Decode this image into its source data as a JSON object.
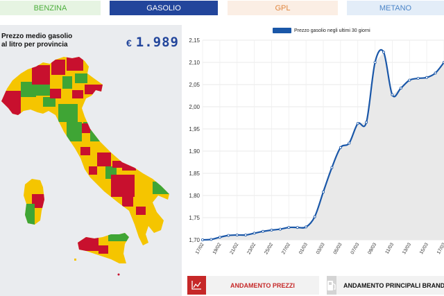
{
  "tabs": [
    {
      "label": "BENZINA"
    },
    {
      "label": "GASOLIO",
      "active": true
    },
    {
      "label": "GPL"
    },
    {
      "label": "METANO"
    }
  ],
  "map_panel": {
    "title_line1": "Prezzo medio gasolio",
    "title_line2": "al litro per provincia",
    "currency": "€",
    "price": "1.989"
  },
  "colors": {
    "accent": "#22459b",
    "map_green": "#3fa535",
    "map_yellow": "#f5c500",
    "map_red": "#c8102e",
    "line": "#1a57a8",
    "button_red": "#c62828"
  },
  "chart_data": {
    "type": "area",
    "legend": "Prezzo gasolio negli ultimi 30 giorni",
    "x_ticks": [
      "17/02",
      "19/02",
      "21/02",
      "23/02",
      "25/02",
      "27/02",
      "01/03",
      "03/03",
      "05/03",
      "07/03",
      "09/03",
      "11/03",
      "13/03",
      "15/03",
      "17/03"
    ],
    "y_ticks": [
      "1,70",
      "1,75",
      "1,80",
      "1,85",
      "1,90",
      "1,95",
      "2,00",
      "2,05",
      "2,10",
      "2,15"
    ],
    "ylim": [
      1.7,
      2.15
    ],
    "grid": true,
    "x": [
      "17/02",
      "18/02",
      "19/02",
      "20/02",
      "21/02",
      "22/02",
      "23/02",
      "24/02",
      "25/02",
      "26/02",
      "27/02",
      "28/02",
      "01/03",
      "02/03",
      "03/03",
      "04/03",
      "05/03",
      "06/03",
      "07/03",
      "08/03",
      "09/03",
      "10/03",
      "11/03",
      "12/03",
      "13/03",
      "14/03",
      "15/03",
      "16/03",
      "17/03"
    ],
    "values": [
      1.7,
      1.701,
      1.706,
      1.71,
      1.711,
      1.711,
      1.715,
      1.719,
      1.722,
      1.724,
      1.728,
      1.728,
      1.729,
      1.752,
      1.808,
      1.863,
      1.908,
      1.918,
      1.962,
      1.965,
      2.1,
      2.123,
      2.027,
      2.042,
      2.06,
      2.064,
      2.066,
      2.076,
      2.1
    ]
  },
  "buttons": {
    "prezzi": "ANDAMENTO PREZZI",
    "brand": "ANDAMENTO PRINCIPALI BRAND"
  },
  "icons": {
    "prezzi": "line-chart-icon",
    "brand": "fuel-pump-icon"
  }
}
